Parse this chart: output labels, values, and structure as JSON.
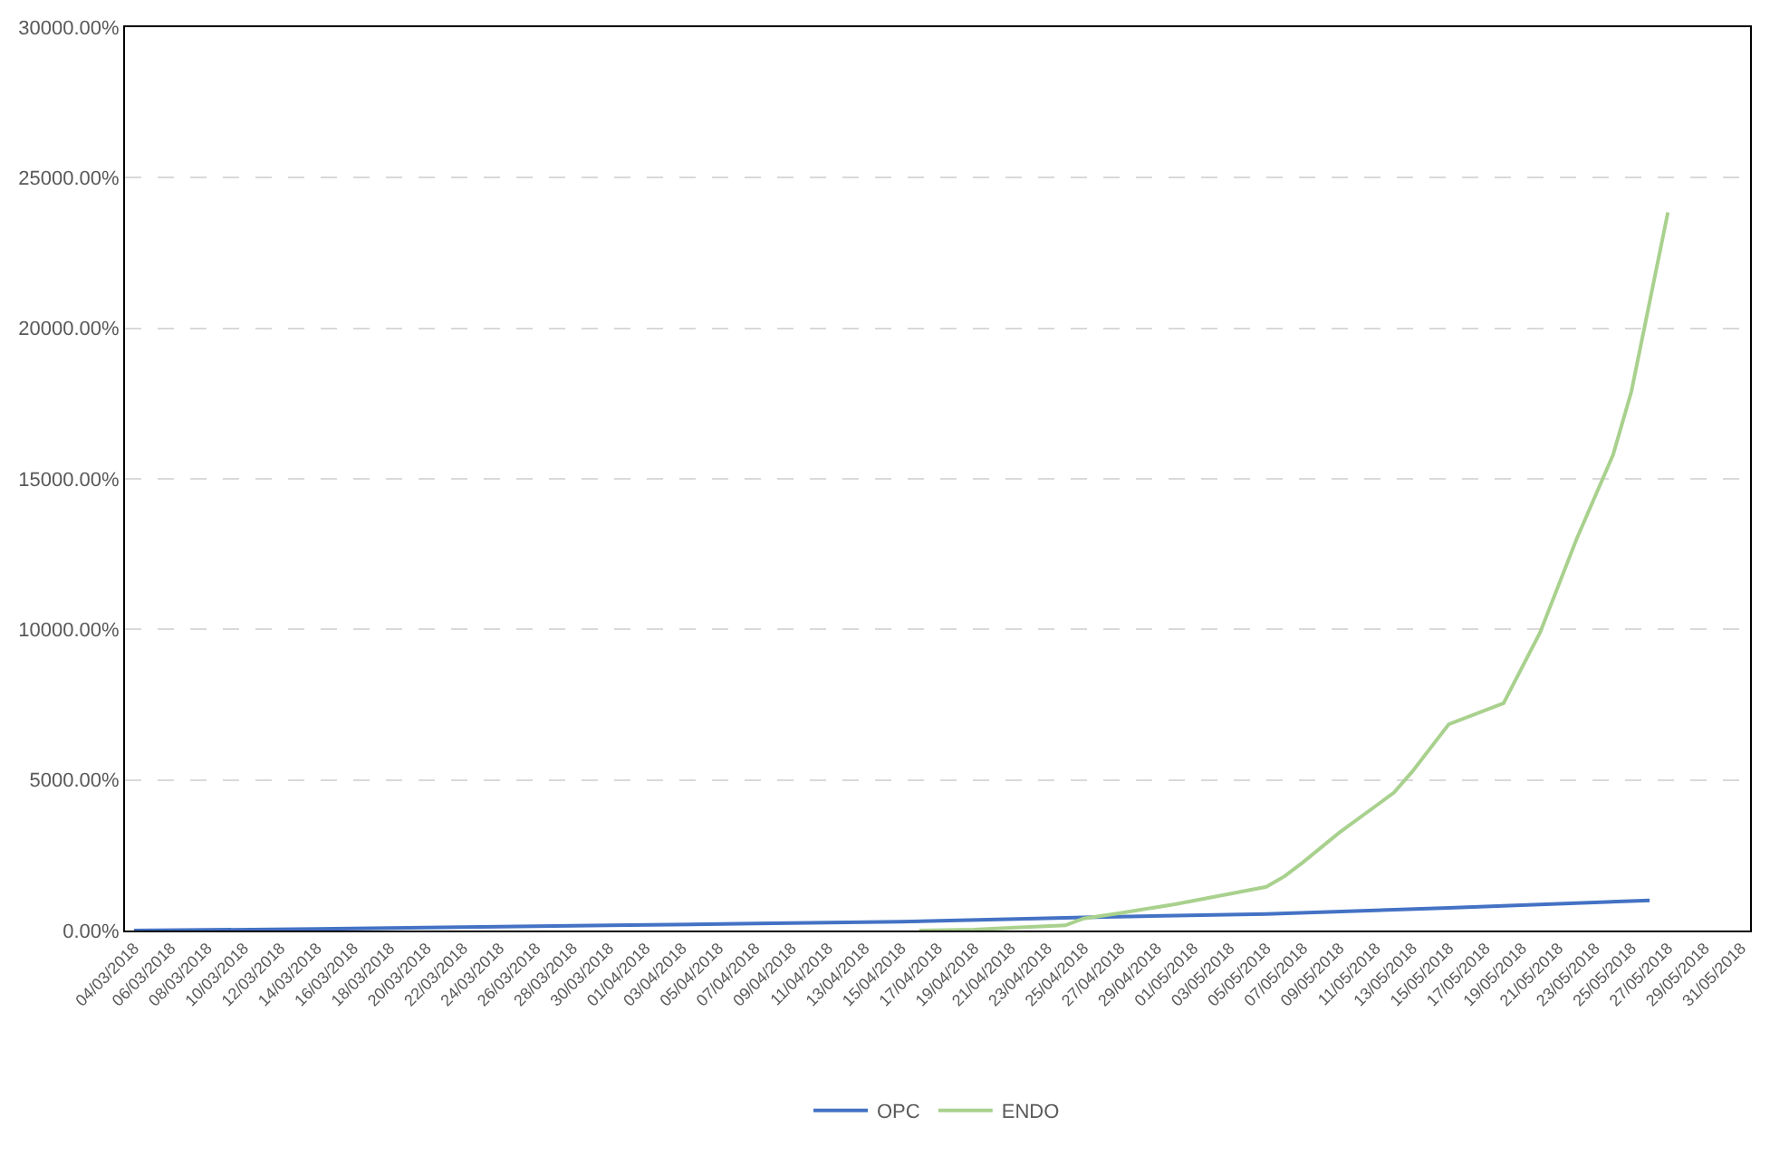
{
  "chart_data": {
    "type": "line",
    "series": [
      {
        "name": "OPC",
        "color": "#4472c4",
        "x": [
          "2018-03-04",
          "2018-03-14",
          "2018-03-22",
          "2018-03-30",
          "2018-04-07",
          "2018-04-15",
          "2018-04-25",
          "2018-05-05",
          "2018-05-15",
          "2018-05-26"
        ],
        "values": [
          0,
          50,
          115,
          175,
          230,
          290,
          435,
          550,
          750,
          1000
        ]
      },
      {
        "name": "ENDO",
        "color": "#a9d18e",
        "x": [
          "2018-04-16",
          "2018-04-19",
          "2018-04-21",
          "2018-04-24",
          "2018-04-25",
          "2018-04-27",
          "2018-04-30",
          "2018-05-03",
          "2018-05-05",
          "2018-05-06",
          "2018-05-07",
          "2018-05-09",
          "2018-05-12",
          "2018-05-13",
          "2018-05-15",
          "2018-05-18",
          "2018-05-20",
          "2018-05-22",
          "2018-05-24",
          "2018-05-25",
          "2018-05-27"
        ],
        "values": [
          0,
          30,
          90,
          170,
          400,
          580,
          870,
          1220,
          1450,
          1800,
          2260,
          3250,
          4580,
          5280,
          6850,
          7550,
          9900,
          13000,
          15800,
          17900,
          23850
        ]
      }
    ],
    "xlim": [
      "2018-03-03T12:00",
      "2018-05-31T12:00"
    ],
    "xticks": [
      {
        "value": "2018-03-04",
        "label": "04/03/2018"
      },
      {
        "value": "2018-03-06",
        "label": "06/03/2018"
      },
      {
        "value": "2018-03-08",
        "label": "08/03/2018"
      },
      {
        "value": "2018-03-10",
        "label": "10/03/2018"
      },
      {
        "value": "2018-03-12",
        "label": "12/03/2018"
      },
      {
        "value": "2018-03-14",
        "label": "14/03/2018"
      },
      {
        "value": "2018-03-16",
        "label": "16/03/2018"
      },
      {
        "value": "2018-03-18",
        "label": "18/03/2018"
      },
      {
        "value": "2018-03-20",
        "label": "20/03/2018"
      },
      {
        "value": "2018-03-22",
        "label": "22/03/2018"
      },
      {
        "value": "2018-03-24",
        "label": "24/03/2018"
      },
      {
        "value": "2018-03-26",
        "label": "26/03/2018"
      },
      {
        "value": "2018-03-28",
        "label": "28/03/2018"
      },
      {
        "value": "2018-03-30",
        "label": "30/03/2018"
      },
      {
        "value": "2018-04-01",
        "label": "01/04/2018"
      },
      {
        "value": "2018-04-03",
        "label": "03/04/2018"
      },
      {
        "value": "2018-04-05",
        "label": "05/04/2018"
      },
      {
        "value": "2018-04-07",
        "label": "07/04/2018"
      },
      {
        "value": "2018-04-09",
        "label": "09/04/2018"
      },
      {
        "value": "2018-04-11",
        "label": "11/04/2018"
      },
      {
        "value": "2018-04-13",
        "label": "13/04/2018"
      },
      {
        "value": "2018-04-15",
        "label": "15/04/2018"
      },
      {
        "value": "2018-04-17",
        "label": "17/04/2018"
      },
      {
        "value": "2018-04-19",
        "label": "19/04/2018"
      },
      {
        "value": "2018-04-21",
        "label": "21/04/2018"
      },
      {
        "value": "2018-04-23",
        "label": "23/04/2018"
      },
      {
        "value": "2018-04-25",
        "label": "25/04/2018"
      },
      {
        "value": "2018-04-27",
        "label": "27/04/2018"
      },
      {
        "value": "2018-04-29",
        "label": "29/04/2018"
      },
      {
        "value": "2018-05-01",
        "label": "01/05/2018"
      },
      {
        "value": "2018-05-03",
        "label": "03/05/2018"
      },
      {
        "value": "2018-05-05",
        "label": "05/05/2018"
      },
      {
        "value": "2018-05-07",
        "label": "07/05/2018"
      },
      {
        "value": "2018-05-09",
        "label": "09/05/2018"
      },
      {
        "value": "2018-05-11",
        "label": "11/05/2018"
      },
      {
        "value": "2018-05-13",
        "label": "13/05/2018"
      },
      {
        "value": "2018-05-15",
        "label": "15/05/2018"
      },
      {
        "value": "2018-05-17",
        "label": "17/05/2018"
      },
      {
        "value": "2018-05-19",
        "label": "19/05/2018"
      },
      {
        "value": "2018-05-21",
        "label": "21/05/2018"
      },
      {
        "value": "2018-05-23",
        "label": "23/05/2018"
      },
      {
        "value": "2018-05-25",
        "label": "25/05/2018"
      },
      {
        "value": "2018-05-27",
        "label": "27/05/2018"
      },
      {
        "value": "2018-05-29",
        "label": "29/05/2018"
      },
      {
        "value": "2018-05-31",
        "label": "31/05/2018"
      }
    ],
    "ylim": [
      0,
      30000
    ],
    "yticks": [
      {
        "value": 0,
        "label": "0.00%"
      },
      {
        "value": 5000,
        "label": "5000.00%"
      },
      {
        "value": 10000,
        "label": "10000.00%"
      },
      {
        "value": 15000,
        "label": "15000.00%"
      },
      {
        "value": 20000,
        "label": "20000.00%"
      },
      {
        "value": 25000,
        "label": "25000.00%"
      },
      {
        "value": 30000,
        "label": "30000.00%"
      }
    ],
    "grid": "y",
    "legend": "bottom",
    "marker": "none",
    "line_style": "solid"
  }
}
